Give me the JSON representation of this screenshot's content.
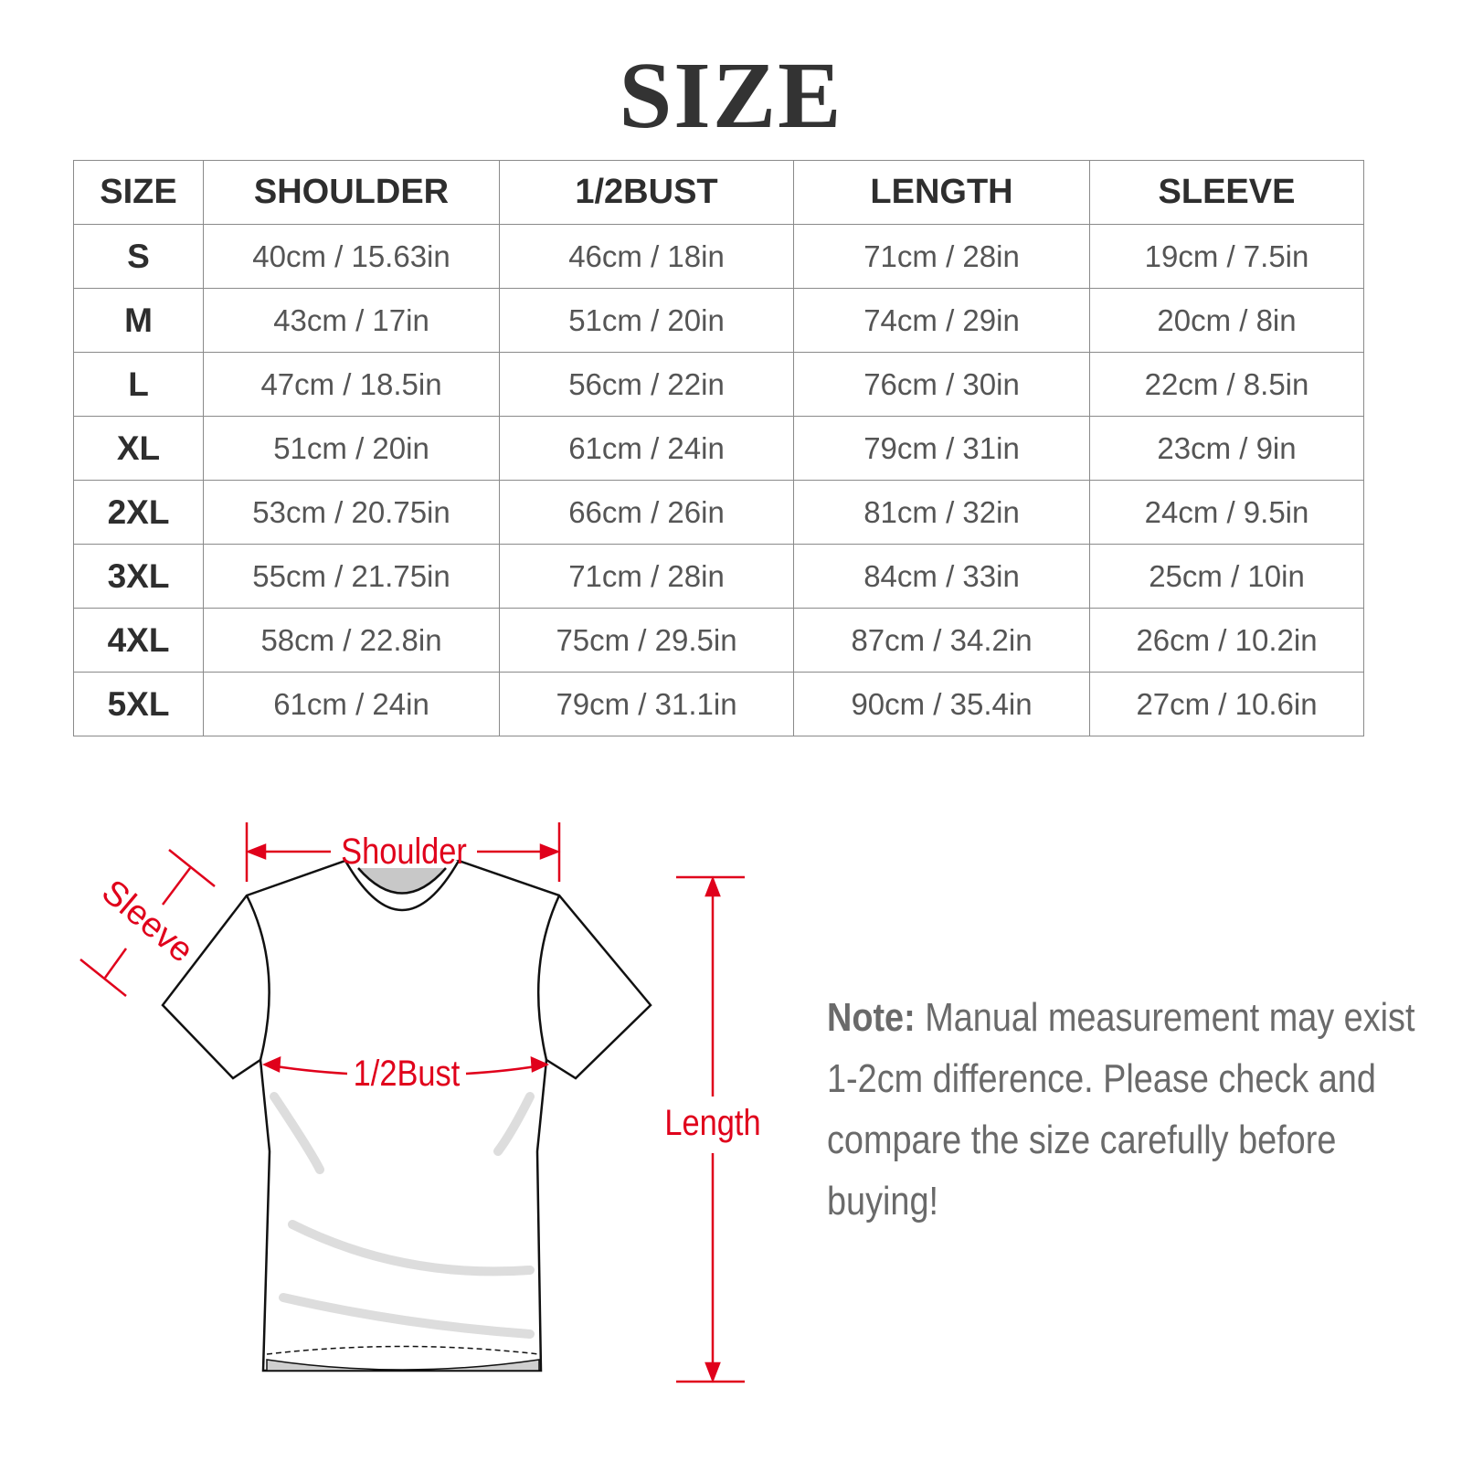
{
  "title": "SIZE",
  "table": {
    "headers": [
      "SIZE",
      "SHOULDER",
      "1/2BUST",
      "LENGTH",
      "SLEEVE"
    ],
    "rows": [
      [
        "S",
        "40cm / 15.63in",
        "46cm / 18in",
        "71cm / 28in",
        "19cm / 7.5in"
      ],
      [
        "M",
        "43cm / 17in",
        "51cm / 20in",
        "74cm / 29in",
        "20cm / 8in"
      ],
      [
        "L",
        "47cm / 18.5in",
        "56cm / 22in",
        "76cm / 30in",
        "22cm / 8.5in"
      ],
      [
        "XL",
        "51cm / 20in",
        "61cm / 24in",
        "79cm / 31in",
        "23cm / 9in"
      ],
      [
        "2XL",
        "53cm / 20.75in",
        "66cm / 26in",
        "81cm / 32in",
        "24cm / 9.5in"
      ],
      [
        "3XL",
        "55cm / 21.75in",
        "71cm / 28in",
        "84cm / 33in",
        "25cm / 10in"
      ],
      [
        "4XL",
        "58cm / 22.8in",
        "75cm / 29.5in",
        "87cm / 34.2in",
        "26cm / 10.2in"
      ],
      [
        "5XL",
        "61cm / 24in",
        "79cm / 31.1in",
        "90cm / 35.4in",
        "27cm / 10.6in"
      ]
    ]
  },
  "diagram": {
    "labels": {
      "shoulder": "Shoulder",
      "sleeve": "Sleeve",
      "bust": "1/2Bust",
      "length": "Length"
    },
    "accent_color": "#e0001b"
  },
  "note": {
    "label": "Note:",
    "text": " Manual measurement may exist 1-2cm difference. Please check and compare the size carefully before buying!"
  }
}
